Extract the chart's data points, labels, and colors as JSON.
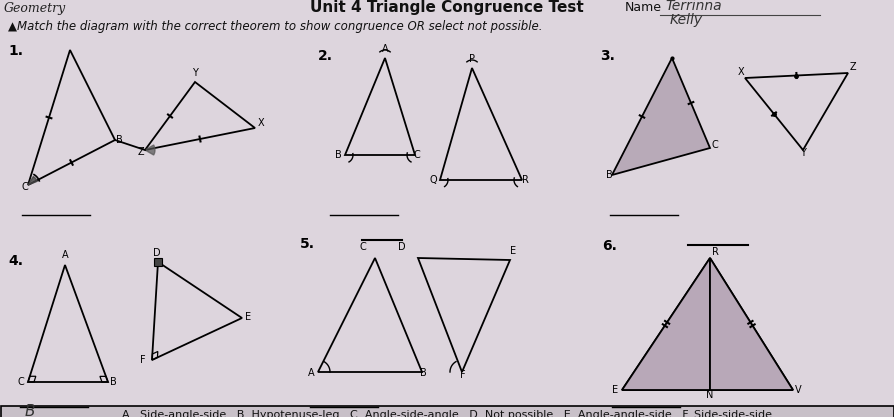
{
  "title": "Unit 4 Triangle Congruence Test",
  "left_header": "Geometry",
  "name_label": "Name",
  "instruction": "▲Match the diagram with the correct theorem to show congruence OR select not possible.",
  "answer_bar": "A.  Side-angle-side   B. Hypotenuse-leg   C. Angle-side-angle   D. Not possible   E. Angle-angle-side   F. Side-side-side",
  "bg_color": "#ddd5dd",
  "answer_bg": "#c8c0c8",
  "numbers": [
    "1.",
    "2.",
    "3.",
    "4.",
    "5.",
    "6."
  ],
  "prob1_answer": "",
  "prob2_answer": "",
  "prob3_answer": "",
  "prob4_answer": "B",
  "prob5_answer": "",
  "prob6_answer": ""
}
